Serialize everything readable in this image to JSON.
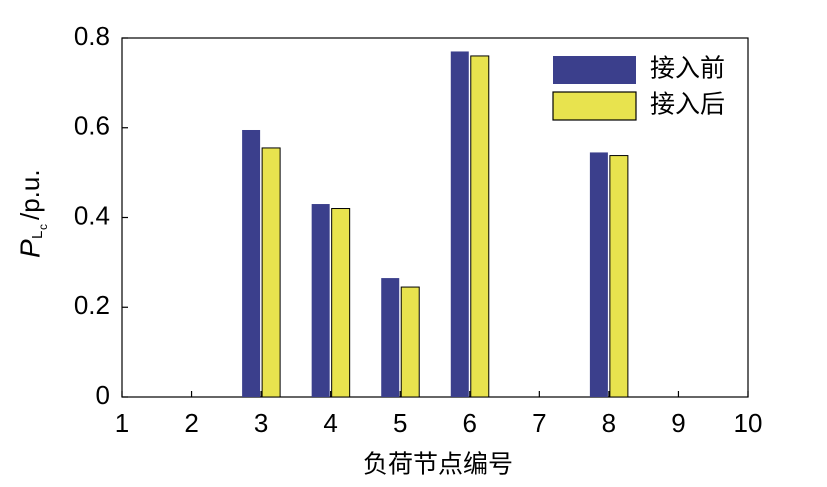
{
  "chart_data": {
    "type": "bar",
    "x": [
      3,
      4,
      5,
      6,
      8
    ],
    "series": [
      {
        "name": "接入前",
        "color": "#3b3f8c",
        "values": [
          0.595,
          0.43,
          0.265,
          0.77,
          0.545
        ]
      },
      {
        "name": "接入后",
        "color": "#e8e34e",
        "values": [
          0.555,
          0.42,
          0.245,
          0.76,
          0.538
        ]
      }
    ],
    "xlim": [
      1,
      10
    ],
    "xticks": [
      1,
      2,
      3,
      4,
      5,
      6,
      7,
      8,
      9,
      10
    ],
    "ylim": [
      0,
      0.8
    ],
    "yticks": [
      0,
      0.2,
      0.4,
      0.6,
      0.8
    ],
    "x_label": "负荷节点编号",
    "y_label": {
      "symbol": "P",
      "subscript": "L",
      "subsubscript": "c",
      "unit": "/p.u."
    },
    "legend": "upper right",
    "grid": false
  }
}
